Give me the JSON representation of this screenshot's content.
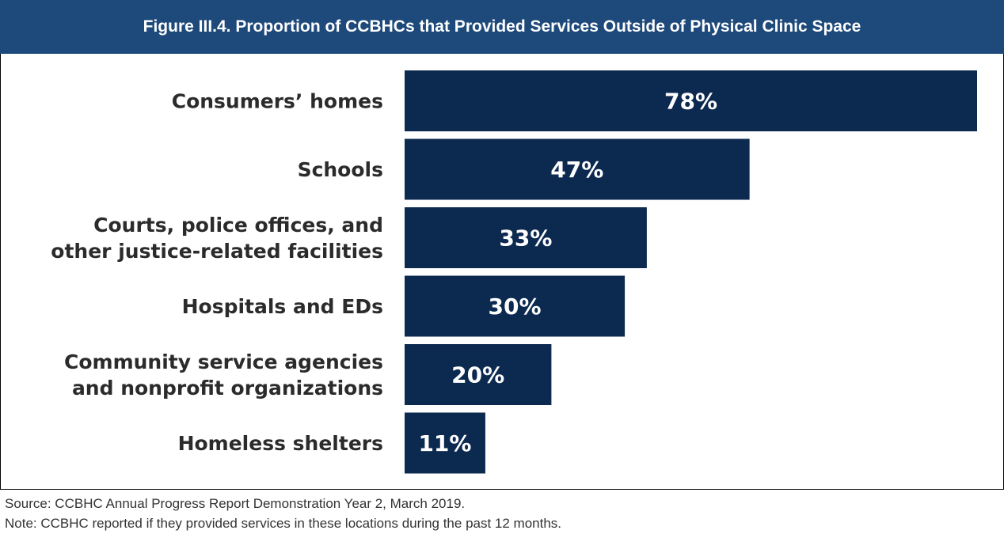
{
  "title": "Figure III.4. Proportion of CCBHCs that Provided Services Outside of Physical Clinic Space",
  "colors": {
    "header": "#1e4a7b",
    "bar": "#0c2a4f",
    "value_label": "#ffffff"
  },
  "chart_data": {
    "type": "bar",
    "orientation": "horizontal",
    "categories": [
      [
        "Consumers’ homes"
      ],
      [
        "Schools"
      ],
      [
        "Courts, police offices, and",
        "other justice-related facilities"
      ],
      [
        "Hospitals and EDs"
      ],
      [
        "Community service agencies",
        "and nonprofit organizations"
      ],
      [
        "Homeless shelters"
      ]
    ],
    "values": [
      78,
      47,
      33,
      30,
      20,
      11
    ],
    "value_labels": [
      "78%",
      "47%",
      "33%",
      "30%",
      "20%",
      "11%"
    ],
    "xlim": [
      0,
      78
    ],
    "grid": false,
    "legend": "none"
  },
  "footer": {
    "source": "Source:  CCBHC Annual Progress Report Demonstration Year 2, March 2019.",
    "note": "Note:  CCBHC reported if they provided services in these locations during the past 12 months."
  }
}
